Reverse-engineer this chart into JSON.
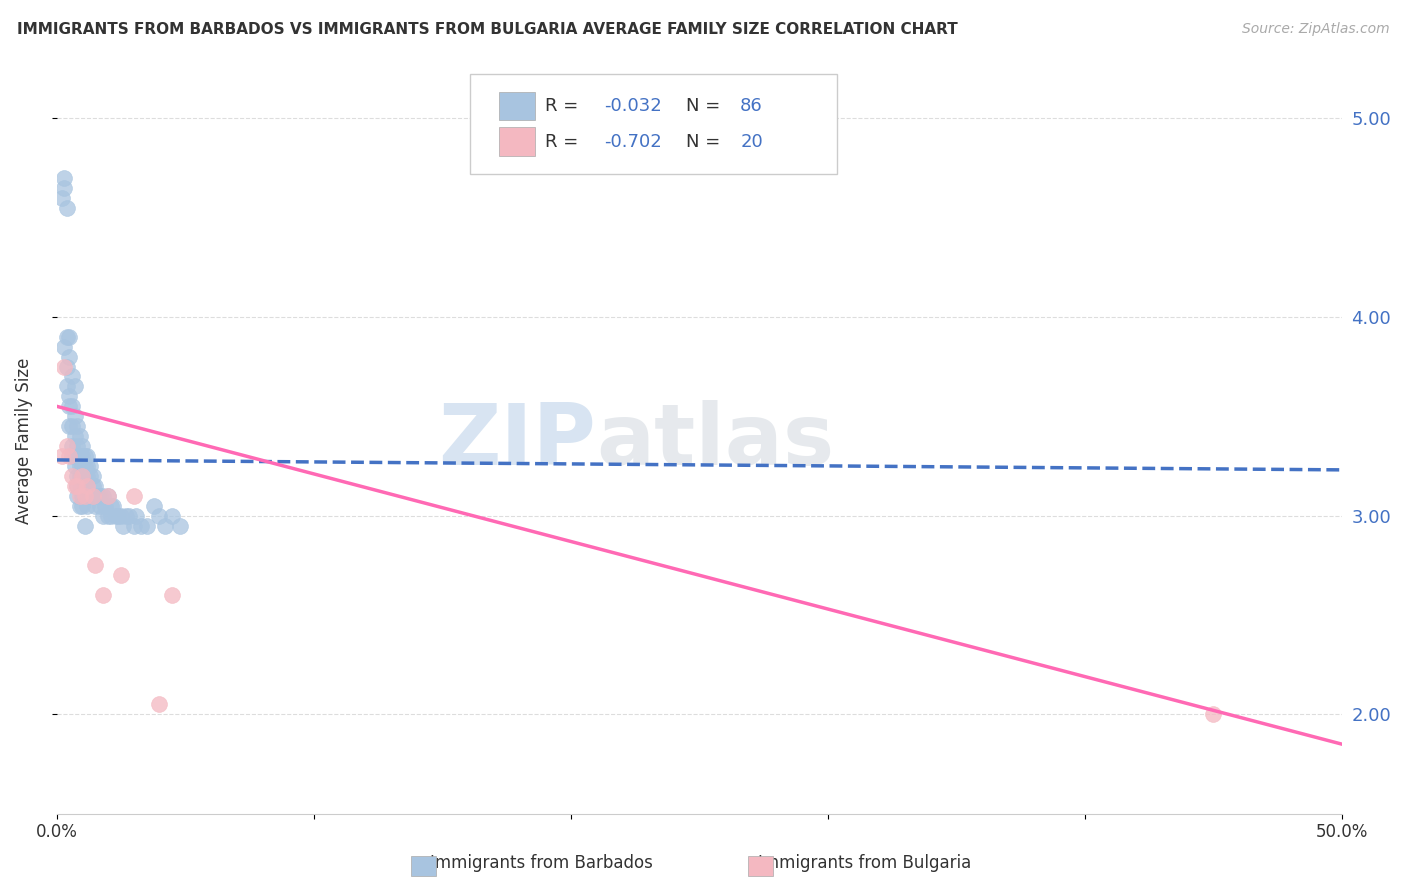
{
  "title": "IMMIGRANTS FROM BARBADOS VS IMMIGRANTS FROM BULGARIA AVERAGE FAMILY SIZE CORRELATION CHART",
  "source": "Source: ZipAtlas.com",
  "ylabel": "Average Family Size",
  "xlim": [
    0.0,
    0.5
  ],
  "ylim": [
    1.5,
    5.25
  ],
  "barbados_color": "#a8c4e0",
  "bulgaria_color": "#f4b8c1",
  "barbados_line_color": "#4472C4",
  "bulgaria_line_color": "#FF69B4",
  "barbados_R": -0.032,
  "barbados_N": 86,
  "bulgaria_R": -0.702,
  "bulgaria_N": 20,
  "legend_label_1": "Immigrants from Barbados",
  "legend_label_2": "Immigrants from Bulgaria",
  "watermark_1": "ZIP",
  "watermark_2": "atlas",
  "background_color": "#ffffff",
  "grid_color": "#dddddd",
  "barbados_x": [
    0.002,
    0.003,
    0.003,
    0.004,
    0.004,
    0.004,
    0.005,
    0.005,
    0.005,
    0.005,
    0.006,
    0.006,
    0.006,
    0.006,
    0.006,
    0.007,
    0.007,
    0.007,
    0.007,
    0.008,
    0.008,
    0.008,
    0.008,
    0.008,
    0.008,
    0.009,
    0.009,
    0.009,
    0.009,
    0.009,
    0.01,
    0.01,
    0.01,
    0.01,
    0.01,
    0.01,
    0.011,
    0.011,
    0.011,
    0.011,
    0.012,
    0.012,
    0.012,
    0.012,
    0.012,
    0.013,
    0.013,
    0.013,
    0.014,
    0.014,
    0.014,
    0.015,
    0.015,
    0.015,
    0.016,
    0.017,
    0.017,
    0.018,
    0.018,
    0.019,
    0.02,
    0.02,
    0.021,
    0.021,
    0.022,
    0.023,
    0.024,
    0.025,
    0.026,
    0.027,
    0.028,
    0.03,
    0.031,
    0.033,
    0.035,
    0.038,
    0.04,
    0.042,
    0.045,
    0.048,
    0.003,
    0.004,
    0.005,
    0.007,
    0.009,
    0.011
  ],
  "barbados_y": [
    4.6,
    4.65,
    3.85,
    3.9,
    3.75,
    3.65,
    3.8,
    3.6,
    3.55,
    3.45,
    3.7,
    3.55,
    3.45,
    3.35,
    3.3,
    3.5,
    3.4,
    3.3,
    3.25,
    3.45,
    3.35,
    3.3,
    3.2,
    3.15,
    3.1,
    3.4,
    3.3,
    3.25,
    3.2,
    3.15,
    3.35,
    3.3,
    3.25,
    3.2,
    3.1,
    3.05,
    3.3,
    3.25,
    3.2,
    3.15,
    3.3,
    3.25,
    3.2,
    3.1,
    3.05,
    3.25,
    3.2,
    3.1,
    3.2,
    3.15,
    3.1,
    3.15,
    3.1,
    3.05,
    3.1,
    3.1,
    3.05,
    3.1,
    3.0,
    3.05,
    3.1,
    3.0,
    3.05,
    3.0,
    3.05,
    3.0,
    3.0,
    3.0,
    2.95,
    3.0,
    3.0,
    2.95,
    3.0,
    2.95,
    2.95,
    3.05,
    3.0,
    2.95,
    3.0,
    2.95,
    4.7,
    4.55,
    3.9,
    3.65,
    3.05,
    2.95
  ],
  "bulgaria_x": [
    0.002,
    0.003,
    0.004,
    0.005,
    0.006,
    0.007,
    0.008,
    0.009,
    0.01,
    0.011,
    0.012,
    0.014,
    0.015,
    0.018,
    0.02,
    0.025,
    0.03,
    0.04,
    0.045,
    0.45
  ],
  "bulgaria_y": [
    3.3,
    3.75,
    3.35,
    3.3,
    3.2,
    3.15,
    3.15,
    3.1,
    3.2,
    3.1,
    3.15,
    3.1,
    2.75,
    2.6,
    3.1,
    2.7,
    3.1,
    2.05,
    2.6,
    2.0
  ],
  "barb_trend_x0": 0.0,
  "barb_trend_x1": 0.5,
  "barb_trend_y0": 3.28,
  "barb_trend_y1": 3.23,
  "bulg_trend_x0": 0.0,
  "bulg_trend_x1": 0.5,
  "bulg_trend_y0": 3.55,
  "bulg_trend_y1": 1.85
}
